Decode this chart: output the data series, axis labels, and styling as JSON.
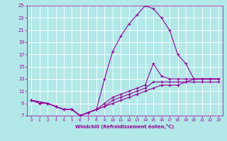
{
  "xlabel": "Windchill (Refroidissement éolien,°C)",
  "bg_color": "#b2e8e8",
  "grid_color": "#ffffff",
  "line_color": "#990099",
  "xlim": [
    -0.5,
    23.5
  ],
  "ylim": [
    7,
    25
  ],
  "yticks": [
    7,
    9,
    11,
    13,
    15,
    17,
    19,
    21,
    23,
    25
  ],
  "xticks": [
    0,
    1,
    2,
    3,
    4,
    5,
    6,
    7,
    8,
    9,
    10,
    11,
    12,
    13,
    14,
    15,
    16,
    17,
    18,
    19,
    20,
    21,
    22,
    23
  ],
  "curve1_x": [
    0,
    1,
    2,
    3,
    4,
    5,
    6,
    7,
    8,
    9,
    10,
    11,
    12,
    13,
    14,
    15,
    16,
    17,
    18,
    19,
    20,
    21,
    22,
    23
  ],
  "curve1_y": [
    9.5,
    9.0,
    9.0,
    8.5,
    8.0,
    8.0,
    7.0,
    7.5,
    8.0,
    13.0,
    17.5,
    20.0,
    22.0,
    23.5,
    25.0,
    24.5,
    23.0,
    21.0,
    17.0,
    15.5,
    13.0,
    13.0,
    13.0,
    13.0
  ],
  "curve2_x": [
    0,
    2,
    3,
    4,
    5,
    6,
    7,
    8,
    9,
    10,
    11,
    12,
    13,
    14,
    15,
    16,
    17,
    18,
    19,
    20,
    21,
    22,
    23
  ],
  "curve2_y": [
    9.5,
    9.0,
    8.5,
    8.0,
    8.0,
    7.0,
    7.5,
    8.0,
    9.0,
    10.0,
    10.5,
    11.0,
    11.5,
    12.0,
    15.5,
    13.5,
    13.0,
    13.0,
    13.0,
    13.0,
    13.0,
    13.0,
    13.0
  ],
  "curve3_x": [
    0,
    2,
    3,
    4,
    5,
    6,
    7,
    8,
    9,
    10,
    11,
    12,
    13,
    14,
    15,
    16,
    17,
    18,
    19,
    20,
    21,
    22,
    23
  ],
  "curve3_y": [
    9.5,
    9.0,
    8.5,
    8.0,
    8.0,
    7.0,
    7.5,
    8.0,
    8.5,
    9.5,
    10.0,
    10.5,
    11.0,
    11.5,
    12.5,
    12.5,
    12.5,
    12.5,
    12.5,
    13.0,
    13.0,
    13.0,
    13.0
  ],
  "curve4_x": [
    0,
    2,
    3,
    4,
    5,
    6,
    7,
    8,
    9,
    10,
    11,
    12,
    13,
    14,
    15,
    16,
    17,
    18,
    19,
    20,
    21,
    22,
    23
  ],
  "curve4_y": [
    9.5,
    9.0,
    8.5,
    8.0,
    8.0,
    7.0,
    7.5,
    8.0,
    8.5,
    9.0,
    9.5,
    10.0,
    10.5,
    11.0,
    11.5,
    12.0,
    12.0,
    12.0,
    12.5,
    12.5,
    12.5,
    12.5,
    12.5
  ]
}
